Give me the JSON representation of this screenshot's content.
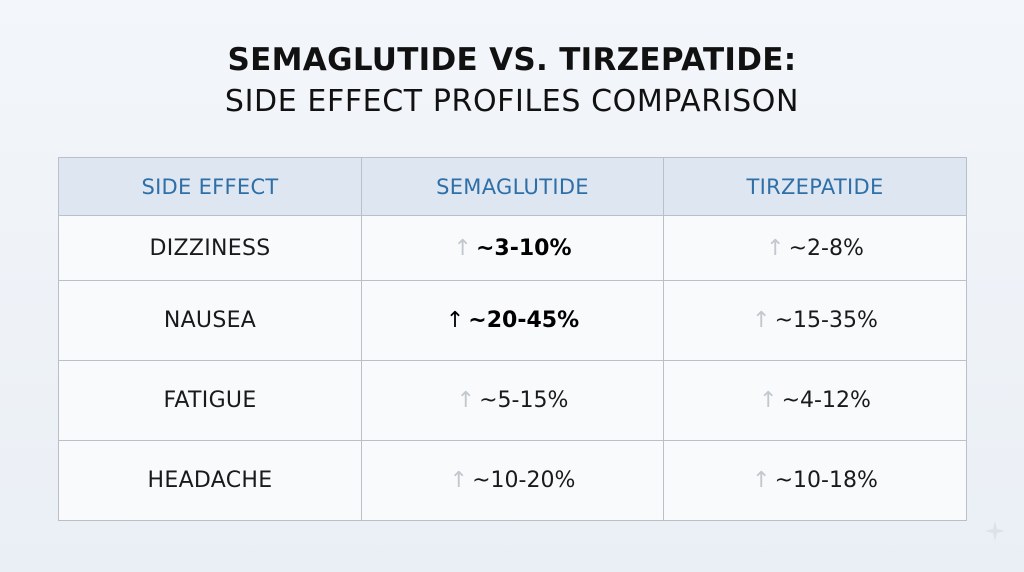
{
  "title": {
    "main": "SEMAGLUTIDE VS. TIRZEPATIDE:",
    "sub": "SIDE EFFECT PROFILES COMPARISON"
  },
  "table": {
    "headers": [
      "SIDE EFFECT",
      "SEMAGLUTIDE",
      "TIRZEPATIDE"
    ],
    "rows": [
      {
        "label": "DIZZINESS",
        "semaglutide": "~3-10%",
        "tirzepatide": "~2-8%"
      },
      {
        "label": "NAUSEA",
        "semaglutide": "~20-45%",
        "tirzepatide": "~15-35%"
      },
      {
        "label": "FATIGUE",
        "semaglutide": "~5-15%",
        "tirzepatide": "~4-12%"
      },
      {
        "label": "HEADACHE",
        "semaglutide": "~10-20%",
        "tirzepatide": "~10-18%"
      }
    ],
    "arrow_symbol": "↑"
  },
  "colors": {
    "header_text": "#2f6fa8",
    "header_bg": "#dde6f1",
    "label_text": "#8c8f93",
    "border": "#b9c0c8"
  },
  "icons": {
    "increase": "up-arrow-icon",
    "corner": "sparkle-icon"
  }
}
